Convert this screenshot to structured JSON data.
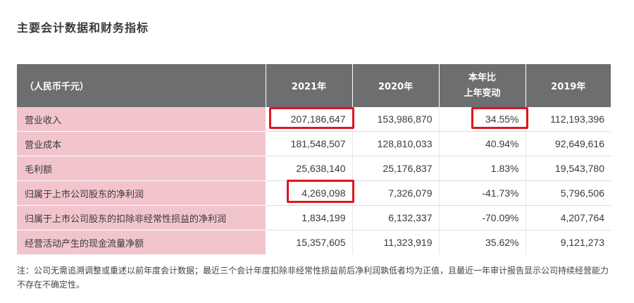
{
  "title": "主要会计数据和财务指标",
  "table": {
    "headers": {
      "unit": "（人民币千元）",
      "y2021": "2021年",
      "y2020": "2020年",
      "change_l1": "本年比",
      "change_l2": "上年变动",
      "y2019": "2019年"
    },
    "rows": [
      {
        "label": "营业收入",
        "y2021": "207,186,647",
        "y2020": "153,986,870",
        "change": "34.55%",
        "y2019": "112,193,396"
      },
      {
        "label": "营业成本",
        "y2021": "181,548,507",
        "y2020": "128,810,033",
        "change": "40.94%",
        "y2019": "92,649,616"
      },
      {
        "label": "毛利额",
        "y2021": "25,638,140",
        "y2020": "25,176,837",
        "change": "1.83%",
        "y2019": "19,543,780"
      },
      {
        "label": "归属于上市公司股东的净利润",
        "y2021": "4,269,098",
        "y2020": "7,326,079",
        "change": "-41.73%",
        "y2019": "5,796,506"
      },
      {
        "label": "归属于上市公司股东的扣除非经常性损益的净利润",
        "y2021": "1,834,199",
        "y2020": "6,132,337",
        "change": "-70.09%",
        "y2019": "4,207,764"
      },
      {
        "label": "经营活动产生的现金流量净额",
        "y2021": "15,357,605",
        "y2020": "11,323,919",
        "change": "35.62%",
        "y2019": "9,121,273"
      }
    ]
  },
  "note": "注：公司无需追溯调整或重述以前年度会计数据；最近三个会计年度扣除非经常性损益前后净利润孰低者均为正值，且最近一年审计报告显示公司持续经营能力不存在不确定性。",
  "colors": {
    "header_bg": "#6d6e70",
    "label_bg": "#f2c5cd",
    "highlight": "#e0141e"
  }
}
